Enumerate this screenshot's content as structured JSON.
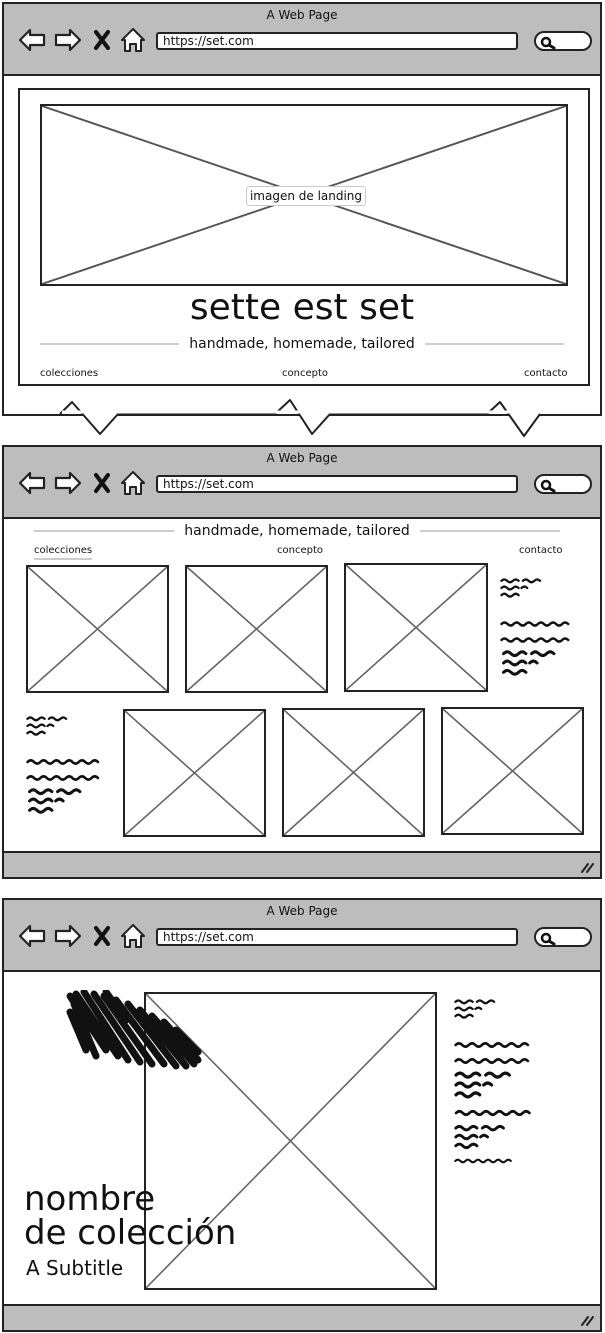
{
  "browser": {
    "window_title": "A Web Page",
    "url": "https://set.com"
  },
  "landing": {
    "image_label": "imagen de landing",
    "site_title": "sette est set",
    "tagline": "handmade, homemade, tailored",
    "nav": {
      "colecciones": "colecciones",
      "concepto": "concepto",
      "contacto": "contacto"
    }
  },
  "collections": {
    "tagline": "handmade, homemade, tailored",
    "nav": {
      "colecciones": "colecciones",
      "concepto": "concepto",
      "contacto": "contacto"
    }
  },
  "detail": {
    "collection_name_line1": "nombre",
    "collection_name_line2": "de colección",
    "subtitle": "A Subtitle"
  }
}
